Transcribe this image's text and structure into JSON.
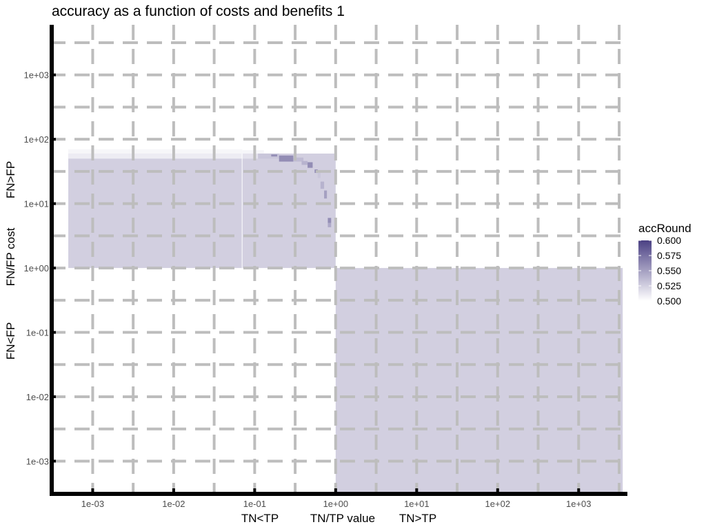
{
  "chart_data": {
    "type": "heatmap",
    "title": "accuracy as a function of costs and benefits 1",
    "xlabel": {
      "left": "TN<TP",
      "center": "TN/TP value",
      "right": "TN>TP"
    },
    "ylabel": {
      "bottom": "FN<FP",
      "center": "FN/FP cost",
      "top": "FN>FP"
    },
    "x_scale": "log10",
    "y_scale": "log10",
    "x_range": [
      0.0003,
      4000
    ],
    "y_range": [
      0.00031,
      6000
    ],
    "x_ticks": [
      0.001,
      0.01,
      0.1,
      1,
      10,
      100,
      1000
    ],
    "x_tick_labels": [
      "1e-03",
      "1e-02",
      "1e-01",
      "1e+00",
      "1e+01",
      "1e+02",
      "1e+03"
    ],
    "y_ticks": [
      0.001,
      0.01,
      0.1,
      1,
      10,
      100,
      1000
    ],
    "y_tick_labels": [
      "1e-03",
      "1e-02",
      "1e-01",
      "1e+00",
      "1e+01",
      "1e+02",
      "1e+03"
    ],
    "grid": true,
    "fill_scale": {
      "name": "accRound",
      "min": 0.5,
      "max": 0.6,
      "low": "#ffffff",
      "high": "#4b4184"
    },
    "regions": [
      {
        "x": [
          0.0005,
          1
        ],
        "y": [
          1,
          60
        ],
        "value": 0.525
      },
      {
        "x": [
          1,
          3500
        ],
        "y": [
          0.00033,
          1
        ],
        "value": 0.525
      },
      {
        "x": [
          0.0005,
          0.07
        ],
        "y": [
          60,
          70
        ],
        "value": 0.505
      },
      {
        "x": [
          0.0005,
          0.07
        ],
        "y": [
          50,
          60
        ],
        "value": 0.51
      },
      {
        "x": [
          0.07,
          0.13
        ],
        "y": [
          60,
          68
        ],
        "value": 0.505
      },
      {
        "x": [
          0.07,
          0.11
        ],
        "y": [
          50,
          60
        ],
        "value": 0.515
      },
      {
        "x": [
          0.11,
          0.2
        ],
        "y": [
          50,
          60
        ],
        "value": 0.53
      },
      {
        "x": [
          0.16,
          0.19
        ],
        "y": [
          54,
          58
        ],
        "value": 0.56
      },
      {
        "x": [
          0.2,
          0.3
        ],
        "y": [
          45,
          56
        ],
        "value": 0.56
      },
      {
        "x": [
          0.3,
          0.4
        ],
        "y": [
          45,
          52
        ],
        "value": 0.535
      },
      {
        "x": [
          0.38,
          0.45
        ],
        "y": [
          40,
          46
        ],
        "value": 0.54
      },
      {
        "x": [
          0.45,
          0.52
        ],
        "y": [
          36,
          44
        ],
        "value": 0.56
      },
      {
        "x": [
          0.55,
          0.6
        ],
        "y": [
          30,
          34
        ],
        "value": 0.56
      },
      {
        "x": [
          0.6,
          0.65
        ],
        "y": [
          25,
          30
        ],
        "value": 0.53
      },
      {
        "x": [
          0.65,
          0.72
        ],
        "y": [
          17,
          22
        ],
        "value": 0.54
      },
      {
        "x": [
          0.72,
          0.78
        ],
        "y": [
          12,
          16
        ],
        "value": 0.55
      },
      {
        "x": [
          0.8,
          0.88
        ],
        "y": [
          5,
          6
        ],
        "value": 0.56
      },
      {
        "x": [
          0.8,
          0.88
        ],
        "y": [
          4.3,
          5
        ],
        "value": 0.545
      }
    ],
    "legend_ticks": [
      0.6,
      0.575,
      0.55,
      0.525,
      0.5
    ],
    "legend_tick_labels": [
      "0.600",
      "0.575",
      "0.550",
      "0.525",
      "0.500"
    ],
    "legend_placement": "right"
  }
}
